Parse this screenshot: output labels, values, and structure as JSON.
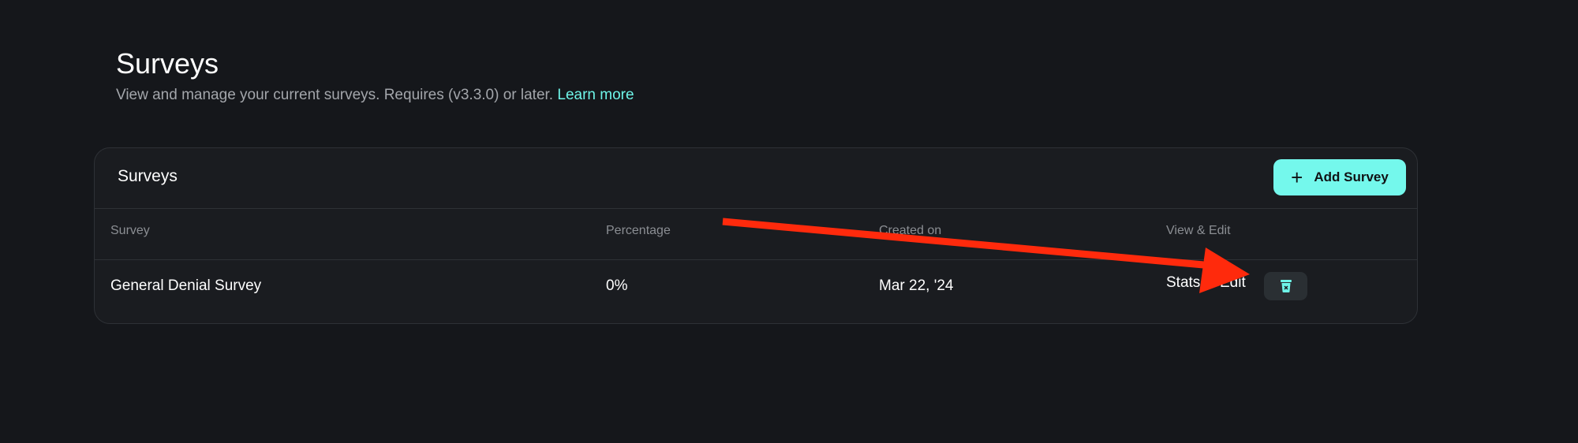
{
  "header": {
    "title": "Surveys",
    "subtitle": "View and manage your current surveys. Requires (v3.3.0) or later.",
    "learn_more": "Learn more"
  },
  "card": {
    "title": "Surveys",
    "add_button": "Add Survey",
    "columns": [
      "Survey",
      "Percentage",
      "Created on",
      "View & Edit"
    ],
    "rows": [
      {
        "name": "General Denial Survey",
        "percentage": "0%",
        "created": "Mar 22, '24",
        "stats": "Stats",
        "edit": "Edit"
      }
    ]
  },
  "colors": {
    "accent": "#74f8ec",
    "annotation_arrow": "#ff2a0c",
    "background": "#15171b"
  },
  "icons": {
    "add": "plus-icon",
    "delete": "trash-icon"
  }
}
